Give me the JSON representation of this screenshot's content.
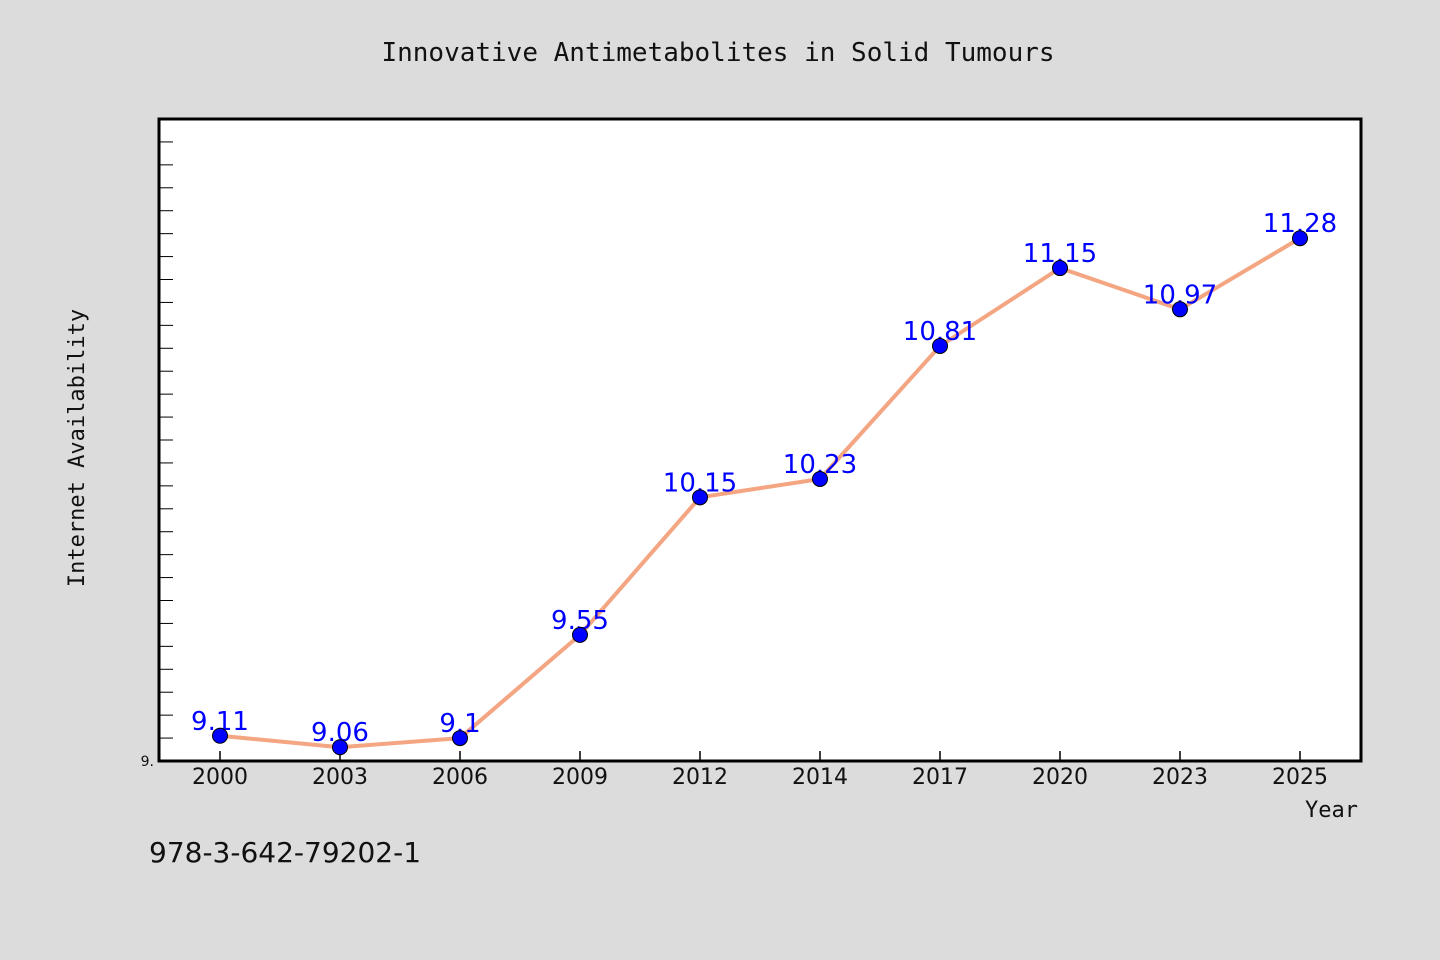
{
  "chart_data": {
    "type": "line",
    "title": "Innovative Antimetabolites in Solid Tumours",
    "xlabel": "Year",
    "ylabel": "Internet Availability",
    "categories": [
      "2000",
      "2003",
      "2006",
      "2009",
      "2012",
      "2014",
      "2017",
      "2020",
      "2023",
      "2025"
    ],
    "series": [
      {
        "values": [
          9.11,
          9.06,
          9.1,
          9.55,
          10.15,
          10.23,
          10.81,
          11.15,
          10.97,
          11.28
        ]
      }
    ],
    "data_labels": [
      "9.11",
      "9.06",
      "9.1",
      "9.55",
      "10.15",
      "10.23",
      "10.81",
      "11.15",
      "10.97",
      "11.28"
    ],
    "y_tick_labels": [
      "9."
    ],
    "ylim": [
      9.0,
      11.8
    ],
    "grid": false,
    "line_color": "#f4a582",
    "marker_color": "#0000ff",
    "label_color": "#0000ff",
    "background_color": "#dcdcdc",
    "plot_background": "#ffffff"
  },
  "footer": {
    "isbn": "978-3-642-79202-1"
  }
}
